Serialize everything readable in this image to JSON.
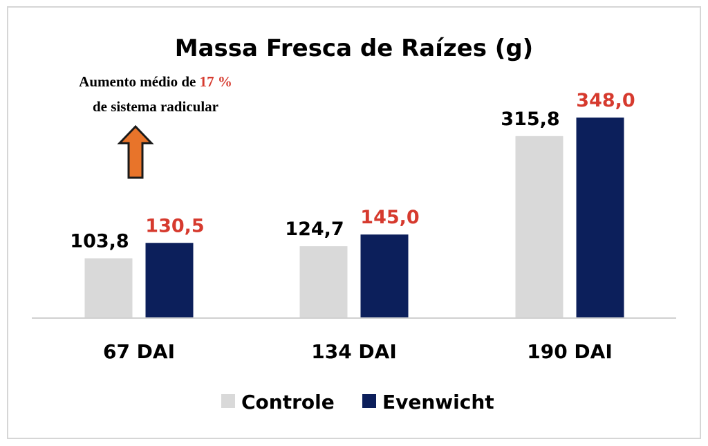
{
  "chart_data": {
    "type": "bar",
    "title": "Massa Fresca de Raízes (g)",
    "categories": [
      "67 DAI",
      "134 DAI",
      "190 DAI"
    ],
    "series": [
      {
        "name": "Controle",
        "values": [
          103.8,
          124.7,
          315.8
        ],
        "labels": [
          "103,8",
          "124,7",
          "315,8"
        ],
        "color": "#d9d9d9",
        "label_color": "#000000"
      },
      {
        "name": "Evenwicht",
        "values": [
          130.5,
          145.0,
          348.0
        ],
        "labels": [
          "130,5",
          "145,0",
          "348,0"
        ],
        "color": "#0c1f5b",
        "label_color": "#d63a2e"
      }
    ],
    "ylim": [
      0,
      360
    ],
    "grid": false,
    "legend_position": "bottom",
    "annotation": {
      "line1_prefix": "Aumento médio de",
      "line1_value": "17 %",
      "line2": "de sistema radicular",
      "arrow_color": "#e8742a",
      "arrow_stroke": "#1a1a1a"
    },
    "axis_color": "#d0d0d0"
  }
}
